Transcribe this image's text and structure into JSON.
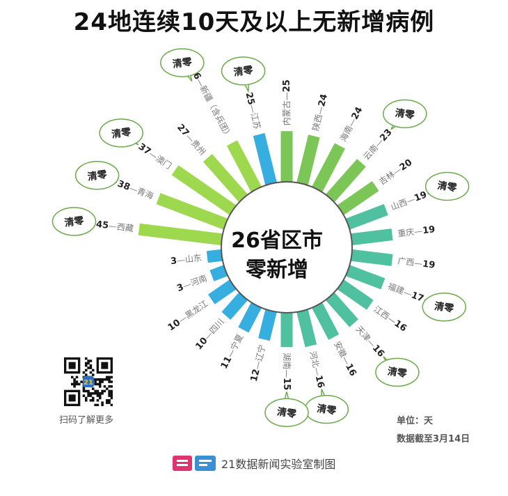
{
  "title": "24地连续10天及以上无新增病例",
  "center": {
    "line1": "26省区市",
    "line2": "零新增"
  },
  "bubble_text": "清零",
  "qr_caption": "扫码了解更多",
  "unit": "单位：天",
  "as_of": "数据截至3月14日",
  "source": "21数据新闻实验室制图",
  "logo_text": "21",
  "colors": {
    "green_dark": "#7cc557",
    "green_light": "#9ed84e",
    "teal": "#50c1a0",
    "blue": "#36aee0",
    "bubble_border": "#6aaa4a"
  },
  "chart_data": {
    "type": "bar",
    "layout": "radial",
    "unit": "天",
    "items": [
      {
        "name": "内蒙古",
        "value": 25,
        "cleared": false
      },
      {
        "name": "陕西",
        "value": 24,
        "cleared": false
      },
      {
        "name": "海南",
        "value": 24,
        "cleared": false
      },
      {
        "name": "云南",
        "value": 23,
        "cleared": true
      },
      {
        "name": "吉林",
        "value": 20,
        "cleared": false
      },
      {
        "name": "山西",
        "value": 19,
        "cleared": true
      },
      {
        "name": "重庆",
        "value": 19,
        "cleared": false
      },
      {
        "name": "广西",
        "value": 19,
        "cleared": false
      },
      {
        "name": "福建",
        "value": 17,
        "cleared": true
      },
      {
        "name": "江西",
        "value": 16,
        "cleared": false
      },
      {
        "name": "天津",
        "value": 16,
        "cleared": true
      },
      {
        "name": "安徽",
        "value": 16,
        "cleared": false
      },
      {
        "name": "河北",
        "value": 16,
        "cleared": true
      },
      {
        "name": "湖南",
        "value": 15,
        "cleared": true
      },
      {
        "name": "辽宁",
        "value": 12,
        "cleared": false
      },
      {
        "name": "宁夏",
        "value": 11,
        "cleared": false
      },
      {
        "name": "四川",
        "value": 10,
        "cleared": false
      },
      {
        "name": "黑龙江",
        "value": 10,
        "cleared": false
      },
      {
        "name": "河南",
        "value": 3,
        "cleared": false
      },
      {
        "name": "山东",
        "value": 3,
        "cleared": false
      },
      {
        "name": "西藏",
        "value": 45,
        "cleared": true
      },
      {
        "name": "青海",
        "value": 38,
        "cleared": true
      },
      {
        "name": "澳门",
        "value": 37,
        "cleared": true
      },
      {
        "name": "贵州",
        "value": 27,
        "cleared": false
      },
      {
        "name": "新疆（含兵团）",
        "value": 26,
        "cleared": true
      },
      {
        "name": "江苏",
        "value": 25,
        "cleared": true
      }
    ]
  }
}
